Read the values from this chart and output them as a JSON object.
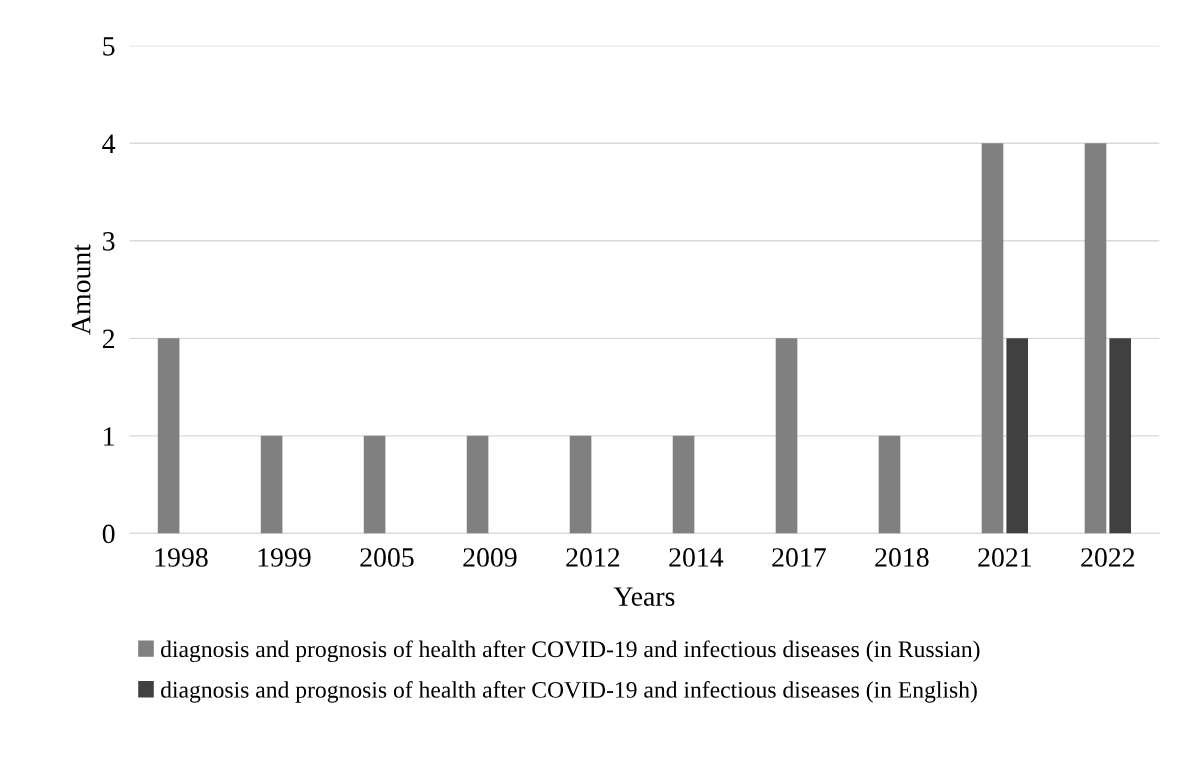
{
  "chart_data": {
    "type": "bar",
    "xlabel": "Years",
    "ylabel": "Amount",
    "categories": [
      "1998",
      "1999",
      "2005",
      "2009",
      "2012",
      "2014",
      "2017",
      "2018",
      "2021",
      "2022"
    ],
    "series": [
      {
        "name": "diagnosis and prognosis of health after COVID-19 and infectious diseases (in Russian)",
        "color": "#808080",
        "values": [
          2,
          1,
          1,
          1,
          1,
          1,
          2,
          1,
          4,
          4
        ]
      },
      {
        "name": "diagnosis and prognosis of health after COVID-19 and infectious diseases (in English)",
        "color": "#404040",
        "values": [
          0,
          0,
          0,
          0,
          0,
          0,
          0,
          0,
          2,
          2
        ]
      }
    ],
    "ylim": [
      0,
      5
    ],
    "yticks": [
      0,
      1,
      2,
      3,
      4,
      5
    ],
    "grid": "y",
    "legend": "bottom"
  }
}
